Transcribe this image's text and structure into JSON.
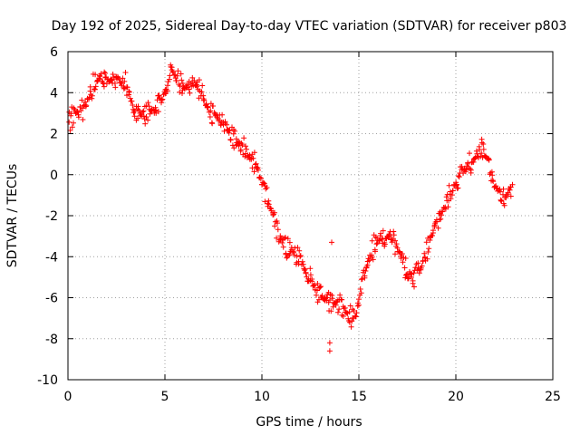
{
  "chart_data": {
    "type": "scatter",
    "title": "Day 192 of 2025, Sidereal Day-to-day VTEC variation (SDTVAR) for receiver p803",
    "xlabel": "GPS time / hours",
    "ylabel": "SDTVAR / TECUs",
    "xlim": [
      0,
      25
    ],
    "ylim": [
      -10,
      6
    ],
    "xticks": [
      0,
      5,
      10,
      15,
      20,
      25
    ],
    "yticks": [
      -10,
      -8,
      -6,
      -4,
      -2,
      0,
      2,
      4,
      6
    ],
    "xtick_labels": [
      "0",
      "5",
      "10",
      "15",
      "20",
      "25"
    ],
    "ytick_labels": [
      "-10",
      "-8",
      "-6",
      "-4",
      "-2",
      "0",
      "2",
      "4",
      "6"
    ],
    "grid": true,
    "marker": "+",
    "color": "#ff0000",
    "series": [
      {
        "name": "SDTVAR",
        "trend": [
          [
            0.05,
            2.6
          ],
          [
            0.4,
            3.0
          ],
          [
            0.8,
            3.1
          ],
          [
            1.0,
            3.6
          ],
          [
            1.3,
            4.4
          ],
          [
            1.7,
            4.9
          ],
          [
            2.1,
            4.5
          ],
          [
            2.6,
            4.6
          ],
          [
            3.0,
            4.4
          ],
          [
            3.3,
            3.5
          ],
          [
            3.7,
            2.9
          ],
          [
            4.1,
            3.0
          ],
          [
            4.6,
            3.2
          ],
          [
            5.0,
            4.0
          ],
          [
            5.3,
            5.2
          ],
          [
            5.6,
            4.7
          ],
          [
            6.0,
            4.2
          ],
          [
            6.4,
            4.6
          ],
          [
            6.8,
            4.1
          ],
          [
            7.2,
            3.3
          ],
          [
            7.6,
            2.9
          ],
          [
            8.0,
            2.6
          ],
          [
            8.4,
            2.0
          ],
          [
            8.8,
            1.5
          ],
          [
            9.2,
            1.1
          ],
          [
            9.6,
            0.6
          ],
          [
            10.0,
            -0.4
          ],
          [
            10.4,
            -1.5
          ],
          [
            10.8,
            -2.8
          ],
          [
            11.2,
            -3.5
          ],
          [
            11.6,
            -3.7
          ],
          [
            12.0,
            -4.2
          ],
          [
            12.4,
            -4.9
          ],
          [
            12.8,
            -5.6
          ],
          [
            13.2,
            -6.0
          ],
          [
            13.6,
            -6.3
          ],
          [
            14.0,
            -6.4
          ],
          [
            14.4,
            -6.8
          ],
          [
            14.8,
            -7.0
          ],
          [
            15.1,
            -5.8
          ],
          [
            15.4,
            -4.5
          ],
          [
            15.8,
            -3.4
          ],
          [
            16.2,
            -3.0
          ],
          [
            16.6,
            -2.9
          ],
          [
            17.0,
            -3.6
          ],
          [
            17.4,
            -4.5
          ],
          [
            17.8,
            -5.1
          ],
          [
            18.2,
            -4.6
          ],
          [
            18.6,
            -3.4
          ],
          [
            19.0,
            -2.4
          ],
          [
            19.4,
            -1.6
          ],
          [
            19.8,
            -0.8
          ],
          [
            20.2,
            0.0
          ],
          [
            20.6,
            0.4
          ],
          [
            21.0,
            0.9
          ],
          [
            21.3,
            1.4
          ],
          [
            21.7,
            0.6
          ],
          [
            22.1,
            -0.7
          ],
          [
            22.5,
            -1.1
          ],
          [
            22.9,
            -0.6
          ]
        ],
        "isolated_points": [
          [
            13.5,
            -8.2
          ],
          [
            13.5,
            -8.6
          ],
          [
            13.6,
            -3.3
          ]
        ]
      }
    ]
  }
}
